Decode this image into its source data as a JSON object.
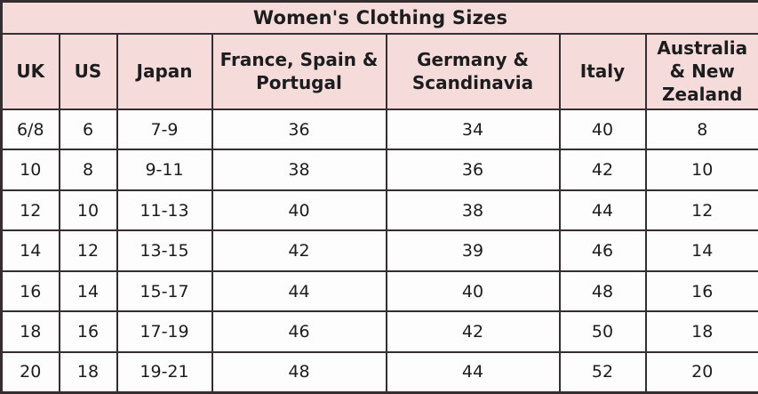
{
  "chart_data": {
    "type": "table",
    "title": "Women's Clothing Sizes",
    "columns": [
      "UK",
      "US",
      "Japan",
      "France, Spain & Portugal",
      "Germany & Scandinavia",
      "Italy",
      "Australia & New Zealand"
    ],
    "rows": [
      [
        "6/8",
        "6",
        "7-9",
        "36",
        "34",
        "40",
        "8"
      ],
      [
        "10",
        "8",
        "9-11",
        "38",
        "36",
        "42",
        "10"
      ],
      [
        "12",
        "10",
        "11-13",
        "40",
        "38",
        "44",
        "12"
      ],
      [
        "14",
        "12",
        "13-15",
        "42",
        "39",
        "46",
        "14"
      ],
      [
        "16",
        "14",
        "15-17",
        "44",
        "40",
        "48",
        "16"
      ],
      [
        "18",
        "16",
        "17-19",
        "46",
        "42",
        "50",
        "18"
      ],
      [
        "20",
        "18",
        "19-21",
        "48",
        "44",
        "52",
        "20"
      ]
    ],
    "layout": {
      "header_bg": "#f5dbd9",
      "body_bg": "#fdfdfd",
      "border_color": "#352d30",
      "text_color": "#1d1d1f"
    }
  }
}
